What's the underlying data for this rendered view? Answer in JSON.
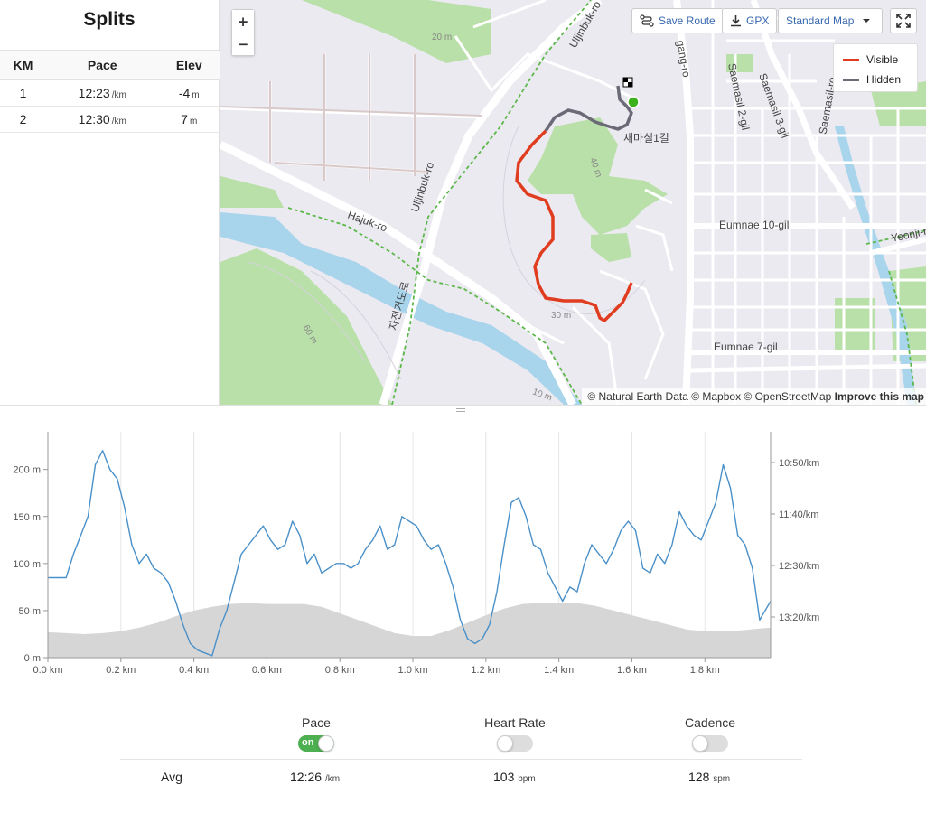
{
  "splits": {
    "title": "Splits",
    "headers": [
      "KM",
      "Pace",
      "Elev"
    ],
    "rows": [
      {
        "km": "1",
        "pace": "12:23",
        "pace_unit": "/km",
        "elev": "-4",
        "elev_unit": "m"
      },
      {
        "km": "2",
        "pace": "12:30",
        "pace_unit": "/km",
        "elev": "7",
        "elev_unit": "m"
      }
    ]
  },
  "map": {
    "zoom_in": "+",
    "zoom_out": "−",
    "save_route": "Save Route",
    "gpx": "GPX",
    "style_select": "Standard Map",
    "legend": {
      "visible": "Visible",
      "hidden": "Hidden",
      "visible_color": "#e03c1f",
      "hidden_color": "#6b6b78"
    },
    "attribution": "© Natural Earth Data © Mapbox © OpenStreetMap",
    "improve_link": "Improve this map",
    "labels": [
      "Uljinbuk-ro",
      "Uljinbuk-ro",
      "Hajuk-ro",
      "Saemasil 2-gil",
      "Saemasil 3-gil",
      "Saemasil-ro",
      "Eumnae 10-gil",
      "Eumnae 7-gil",
      "Yeonji-ro",
      "gang-ro",
      "20 m",
      "40 m",
      "30 m",
      "60 m",
      "10 m",
      "새마실1길",
      "자전거도로"
    ],
    "colors": {
      "park": "#b9e0a8",
      "river": "#a8d4ec",
      "road": "#ffffff",
      "bikepath": "#5cb84a",
      "start": "#3cb11b"
    }
  },
  "chart_data": {
    "type": "line",
    "x_label_unit": "km",
    "x_ticks": [
      "0.0 km",
      "0.2 km",
      "0.4 km",
      "0.6 km",
      "0.8 km",
      "1.0 km",
      "1.2 km",
      "1.4 km",
      "1.6 km",
      "1.8 km"
    ],
    "xlim": [
      0,
      1.98
    ],
    "y_left_ticks": [
      "0 m",
      "50 m",
      "100 m",
      "150 m",
      "200 m"
    ],
    "y_left_lim": [
      0,
      240
    ],
    "y_right_ticks": [
      "10:50/km",
      "11:40/km",
      "12:30/km",
      "13:20/km"
    ],
    "grid": true,
    "series": [
      {
        "name": "Pace",
        "kind": "line",
        "color": "#4a90c8",
        "x": [
          0,
          0.05,
          0.07,
          0.09,
          0.11,
          0.13,
          0.15,
          0.17,
          0.19,
          0.21,
          0.23,
          0.25,
          0.27,
          0.29,
          0.31,
          0.33,
          0.35,
          0.37,
          0.39,
          0.41,
          0.43,
          0.45,
          0.47,
          0.49,
          0.51,
          0.53,
          0.55,
          0.57,
          0.59,
          0.61,
          0.63,
          0.65,
          0.67,
          0.69,
          0.71,
          0.73,
          0.75,
          0.77,
          0.79,
          0.81,
          0.83,
          0.85,
          0.87,
          0.89,
          0.91,
          0.93,
          0.95,
          0.97,
          0.99,
          1.01,
          1.03,
          1.05,
          1.07,
          1.09,
          1.11,
          1.13,
          1.15,
          1.17,
          1.19,
          1.21,
          1.23,
          1.25,
          1.27,
          1.29,
          1.31,
          1.33,
          1.35,
          1.37,
          1.39,
          1.41,
          1.43,
          1.45,
          1.47,
          1.49,
          1.51,
          1.53,
          1.55,
          1.57,
          1.59,
          1.61,
          1.63,
          1.65,
          1.67,
          1.69,
          1.71,
          1.73,
          1.75,
          1.77,
          1.79,
          1.81,
          1.83,
          1.85,
          1.87,
          1.89,
          1.91,
          1.93,
          1.95,
          1.98
        ],
        "y": [
          85,
          85,
          110,
          130,
          150,
          205,
          220,
          200,
          190,
          160,
          120,
          100,
          110,
          95,
          90,
          80,
          60,
          35,
          15,
          8,
          5,
          2,
          30,
          50,
          80,
          110,
          120,
          130,
          140,
          125,
          115,
          120,
          145,
          130,
          100,
          110,
          90,
          95,
          100,
          100,
          95,
          100,
          115,
          125,
          140,
          115,
          120,
          150,
          145,
          140,
          125,
          115,
          120,
          100,
          75,
          40,
          20,
          15,
          20,
          35,
          70,
          120,
          165,
          170,
          150,
          120,
          115,
          90,
          75,
          60,
          75,
          70,
          100,
          120,
          110,
          100,
          115,
          135,
          145,
          135,
          95,
          90,
          110,
          100,
          120,
          155,
          140,
          130,
          125,
          145,
          165,
          205,
          180,
          130,
          120,
          95,
          40,
          60
        ]
      },
      {
        "name": "Elevation",
        "kind": "area",
        "color": "#d6d6d6",
        "x": [
          0,
          0.05,
          0.1,
          0.15,
          0.2,
          0.25,
          0.3,
          0.35,
          0.4,
          0.45,
          0.5,
          0.55,
          0.6,
          0.65,
          0.7,
          0.75,
          0.8,
          0.85,
          0.9,
          0.95,
          1.0,
          1.05,
          1.1,
          1.15,
          1.2,
          1.25,
          1.3,
          1.35,
          1.4,
          1.45,
          1.5,
          1.55,
          1.6,
          1.65,
          1.7,
          1.75,
          1.8,
          1.85,
          1.9,
          1.95,
          1.98
        ],
        "y": [
          27,
          26,
          25,
          26,
          28,
          32,
          37,
          44,
          50,
          54,
          57,
          58,
          57,
          57,
          57,
          54,
          47,
          40,
          33,
          26,
          23,
          23,
          29,
          37,
          45,
          52,
          57,
          58,
          58,
          58,
          55,
          50,
          45,
          40,
          35,
          30,
          28,
          28,
          29,
          31,
          32
        ]
      }
    ]
  },
  "stats": {
    "toggles": [
      {
        "label": "Pace",
        "state": "on",
        "on_text": "on"
      },
      {
        "label": "Heart Rate",
        "state": "off"
      },
      {
        "label": "Cadence",
        "state": "off"
      }
    ],
    "avg_label": "Avg",
    "avg_pace": "12:26",
    "avg_pace_unit": "/km",
    "avg_hr": "103",
    "avg_hr_unit": "bpm",
    "avg_cadence": "128",
    "avg_cadence_unit": "spm"
  }
}
